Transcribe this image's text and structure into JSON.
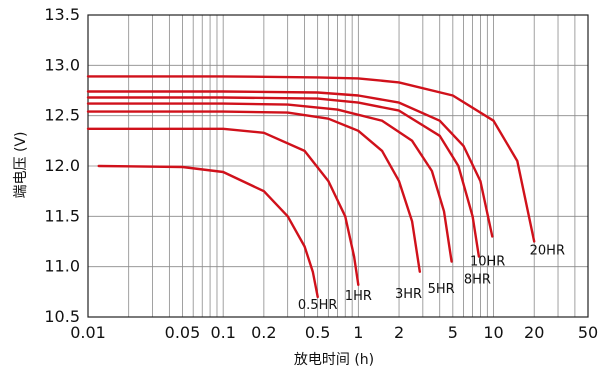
{
  "chart_data": {
    "type": "line",
    "xlabel": "放电时间 (h)",
    "ylabel": "端电压 (V)",
    "xscale": "log",
    "xlim": [
      0.01,
      50
    ],
    "ylim": [
      10.5,
      13.5
    ],
    "x_ticks": [
      {
        "value": 0.01,
        "label": "0.01"
      },
      {
        "value": 0.05,
        "label": "0.05"
      },
      {
        "value": 0.1,
        "label": "0.1"
      },
      {
        "value": 0.2,
        "label": "0.2"
      },
      {
        "value": 0.5,
        "label": "0.5"
      },
      {
        "value": 1,
        "label": "1"
      },
      {
        "value": 2,
        "label": "2"
      },
      {
        "value": 5,
        "label": "5"
      },
      {
        "value": 10,
        "label": "10"
      },
      {
        "value": 20,
        "label": "20"
      },
      {
        "value": 50,
        "label": "50"
      }
    ],
    "y_ticks": [
      {
        "value": 10.5,
        "label": "10.5"
      },
      {
        "value": 11.0,
        "label": "11.0"
      },
      {
        "value": 11.5,
        "label": "11.5"
      },
      {
        "value": 12.0,
        "label": "12.0"
      },
      {
        "value": 12.5,
        "label": "12.5"
      },
      {
        "value": 13.0,
        "label": "13.0"
      },
      {
        "value": 13.5,
        "label": "13.5"
      }
    ],
    "grid": true,
    "line_color": "#d0111b",
    "series": [
      {
        "name": "0.5HR",
        "x": [
          0.012,
          0.05,
          0.1,
          0.2,
          0.3,
          0.4,
          0.46,
          0.5
        ],
        "y": [
          12.0,
          11.99,
          11.94,
          11.75,
          11.5,
          11.2,
          10.95,
          10.7
        ]
      },
      {
        "name": "1HR",
        "x": [
          0.01,
          0.05,
          0.1,
          0.2,
          0.4,
          0.6,
          0.8,
          0.93,
          1.0
        ],
        "y": [
          12.37,
          12.37,
          12.37,
          12.33,
          12.15,
          11.85,
          11.5,
          11.1,
          10.82
        ]
      },
      {
        "name": "3HR",
        "x": [
          0.01,
          0.1,
          0.3,
          0.6,
          1.0,
          1.5,
          2.0,
          2.5,
          2.85
        ],
        "y": [
          12.54,
          12.54,
          12.53,
          12.47,
          12.35,
          12.15,
          11.85,
          11.45,
          10.95
        ]
      },
      {
        "name": "5HR",
        "x": [
          0.01,
          0.1,
          0.3,
          0.7,
          1.5,
          2.5,
          3.5,
          4.3,
          4.9
        ],
        "y": [
          12.62,
          12.62,
          12.61,
          12.56,
          12.45,
          12.25,
          11.95,
          11.55,
          11.05
        ]
      },
      {
        "name": "8HR",
        "x": [
          0.01,
          0.1,
          0.5,
          1.0,
          2.0,
          4.0,
          5.5,
          7.0,
          7.8
        ],
        "y": [
          12.68,
          12.68,
          12.67,
          12.63,
          12.55,
          12.3,
          12.0,
          11.5,
          11.1
        ]
      },
      {
        "name": "10HR",
        "x": [
          0.01,
          0.1,
          0.5,
          1.0,
          2.0,
          4.0,
          6.0,
          8.0,
          9.8
        ],
        "y": [
          12.74,
          12.74,
          12.73,
          12.7,
          12.63,
          12.45,
          12.2,
          11.85,
          11.3
        ]
      },
      {
        "name": "20HR",
        "x": [
          0.01,
          0.1,
          0.5,
          1.0,
          2.0,
          5.0,
          10.0,
          15.0,
          20.0
        ],
        "y": [
          12.89,
          12.89,
          12.88,
          12.87,
          12.83,
          12.7,
          12.45,
          12.05,
          11.25
        ]
      }
    ],
    "curve_labels": [
      {
        "text": "0.5HR",
        "x": 0.5,
        "y": 10.63
      },
      {
        "text": "1HR",
        "x": 1.0,
        "y": 10.72
      },
      {
        "text": "3HR",
        "x": 2.35,
        "y": 10.74
      },
      {
        "text": "5HR",
        "x": 4.1,
        "y": 10.79
      },
      {
        "text": "8HR",
        "x": 7.6,
        "y": 10.88
      },
      {
        "text": "10HR",
        "x": 9.05,
        "y": 11.06
      },
      {
        "text": "20HR",
        "x": 25.0,
        "y": 11.17
      }
    ]
  }
}
